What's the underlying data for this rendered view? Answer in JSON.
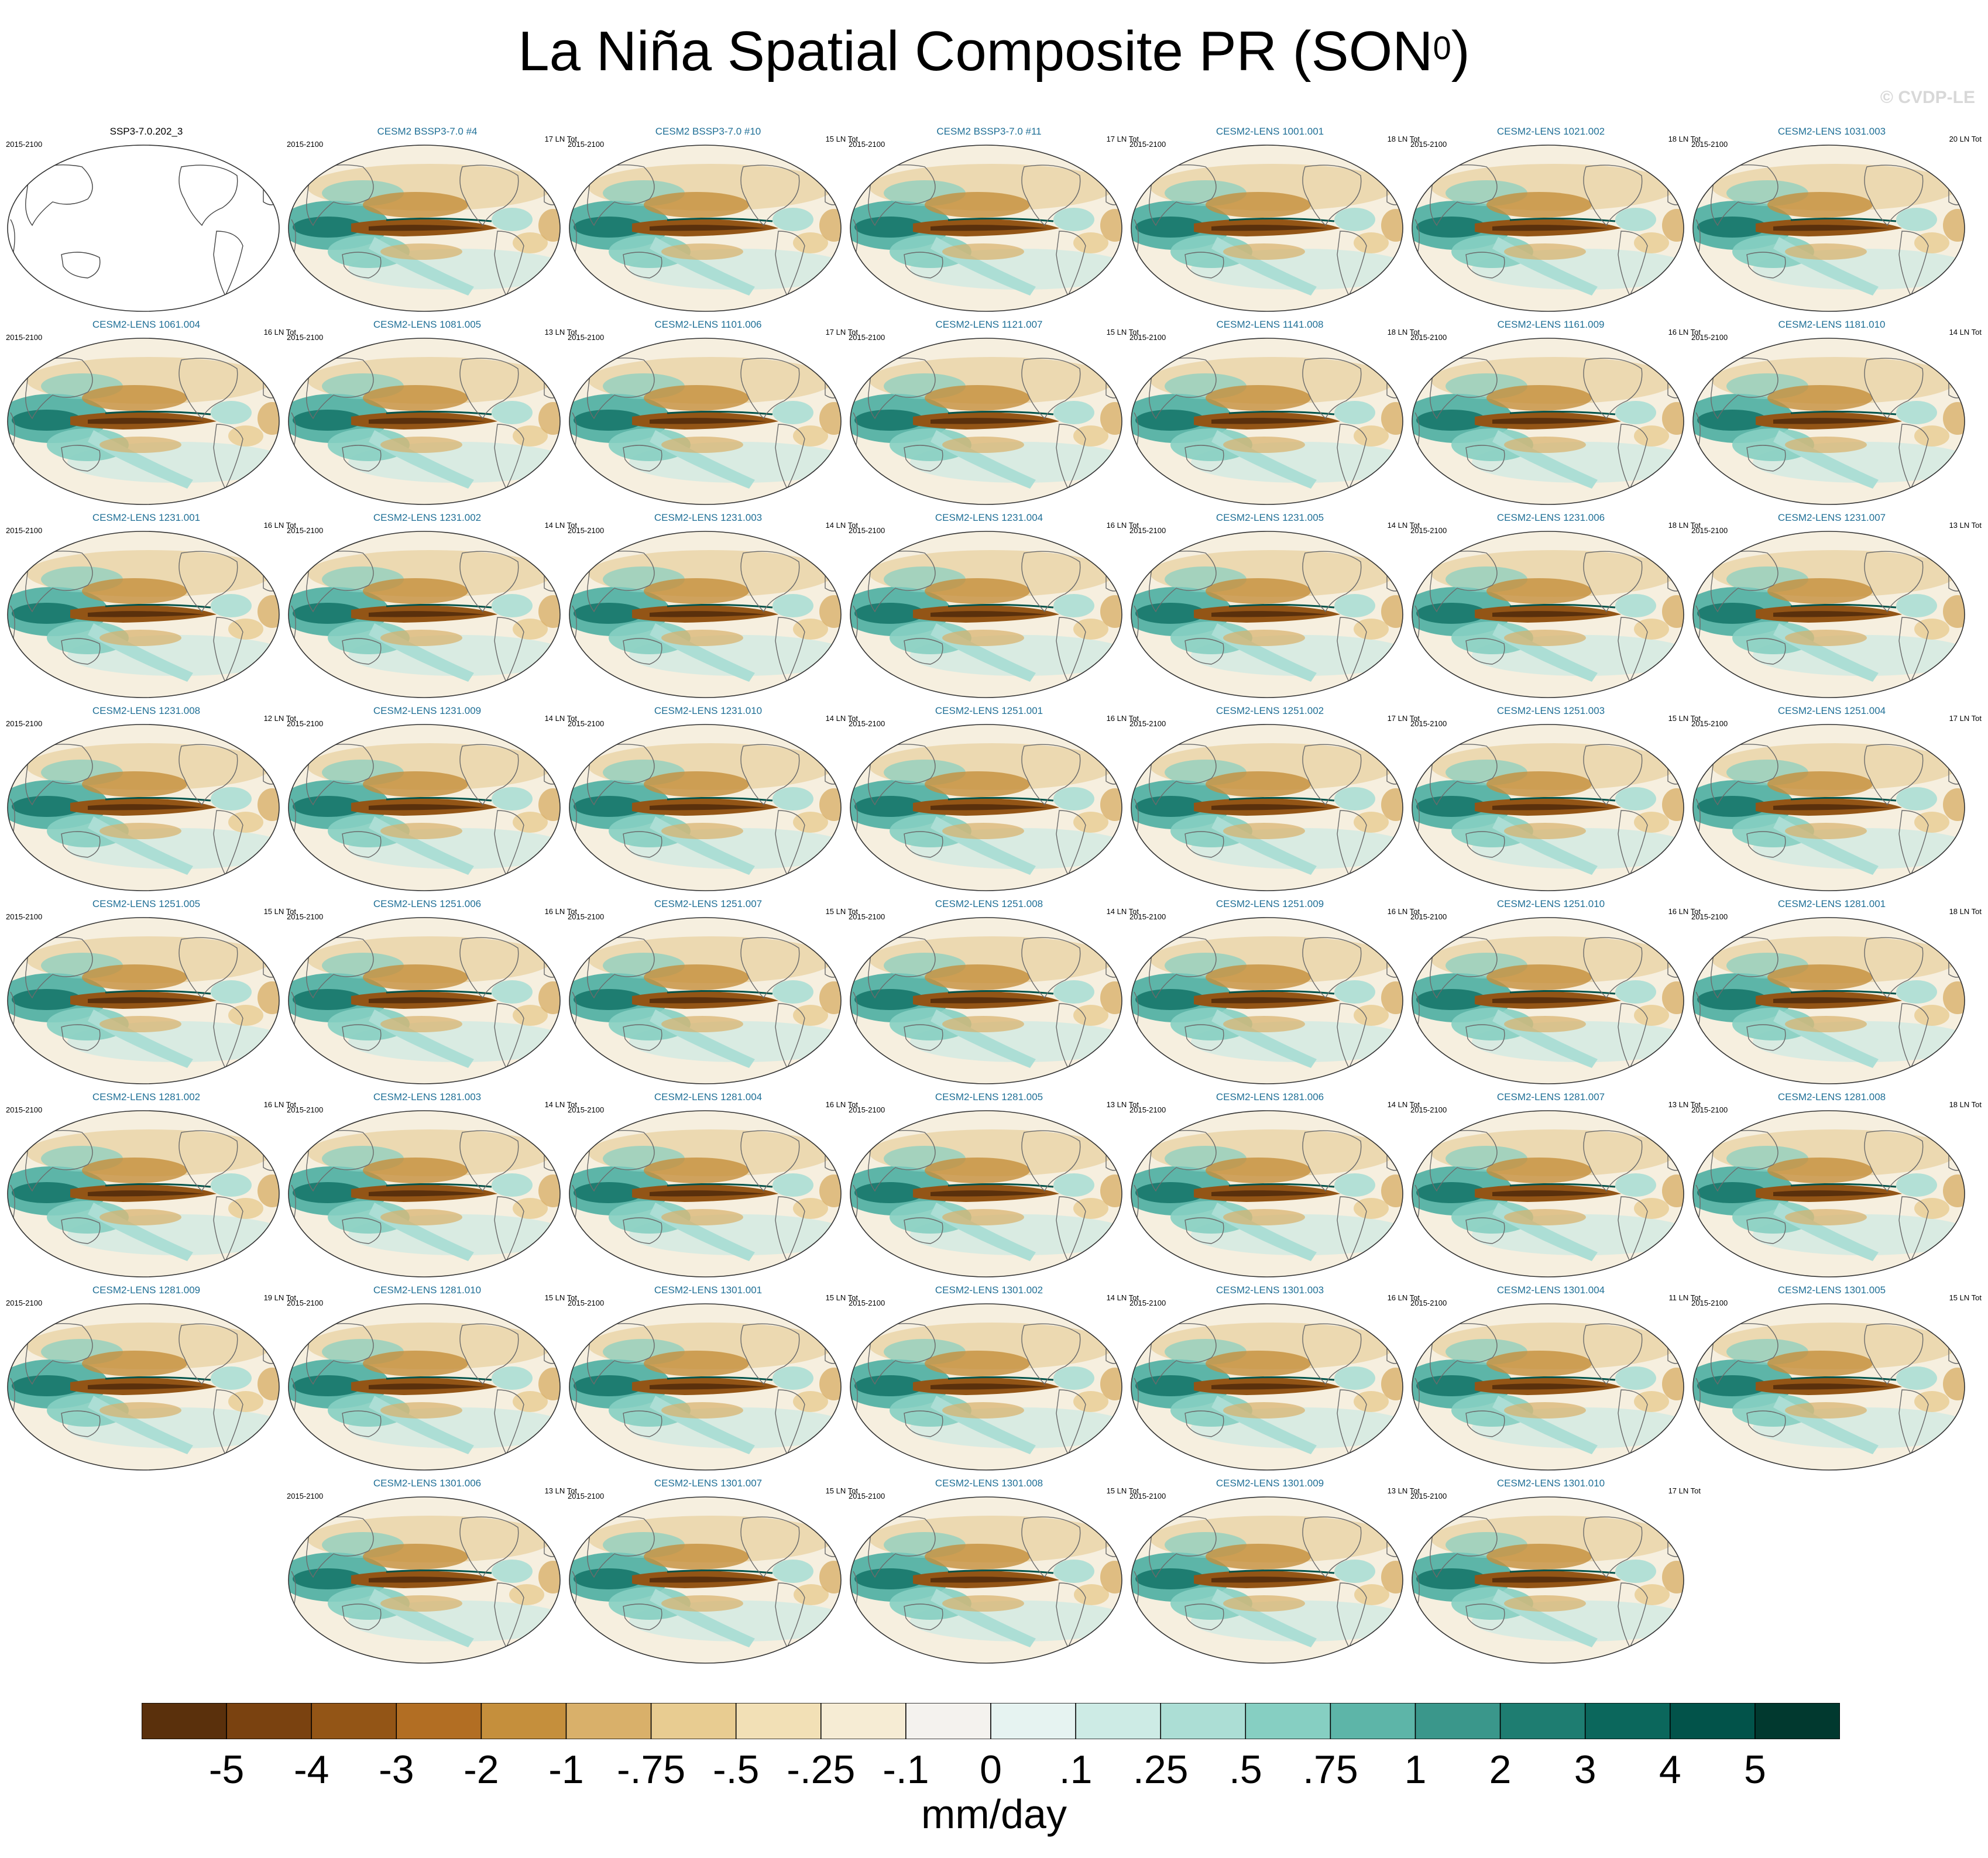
{
  "title": {
    "main": "La Niña Spatial Composite PR (SON",
    "superscript": "0",
    "close": ")"
  },
  "watermark": "© CVDP-LE",
  "period": "2015-2100",
  "panels": [
    {
      "name": "SSP3-7.0.202_3",
      "count": ""
    },
    {
      "name": "CESM2 BSSP3-7.0 #4",
      "count": "17 LN Tot"
    },
    {
      "name": "CESM2 BSSP3-7.0 #10",
      "count": "15 LN Tot"
    },
    {
      "name": "CESM2 BSSP3-7.0 #11",
      "count": "17 LN Tot"
    },
    {
      "name": "CESM2-LENS 1001.001",
      "count": "18 LN Tot"
    },
    {
      "name": "CESM2-LENS 1021.002",
      "count": "18 LN Tot"
    },
    {
      "name": "CESM2-LENS 1031.003",
      "count": "20 LN Tot"
    },
    {
      "name": "CESM2-LENS 1061.004",
      "count": "16 LN Tot"
    },
    {
      "name": "CESM2-LENS 1081.005",
      "count": "13 LN Tot"
    },
    {
      "name": "CESM2-LENS 1101.006",
      "count": "17 LN Tot"
    },
    {
      "name": "CESM2-LENS 1121.007",
      "count": "15 LN Tot"
    },
    {
      "name": "CESM2-LENS 1141.008",
      "count": "18 LN Tot"
    },
    {
      "name": "CESM2-LENS 1161.009",
      "count": "16 LN Tot"
    },
    {
      "name": "CESM2-LENS 1181.010",
      "count": "14 LN Tot"
    },
    {
      "name": "CESM2-LENS 1231.001",
      "count": "16 LN Tot"
    },
    {
      "name": "CESM2-LENS 1231.002",
      "count": "14 LN Tot"
    },
    {
      "name": "CESM2-LENS 1231.003",
      "count": "14 LN Tot"
    },
    {
      "name": "CESM2-LENS 1231.004",
      "count": "16 LN Tot"
    },
    {
      "name": "CESM2-LENS 1231.005",
      "count": "14 LN Tot"
    },
    {
      "name": "CESM2-LENS 1231.006",
      "count": "18 LN Tot"
    },
    {
      "name": "CESM2-LENS 1231.007",
      "count": "13 LN Tot"
    },
    {
      "name": "CESM2-LENS 1231.008",
      "count": "12 LN Tot"
    },
    {
      "name": "CESM2-LENS 1231.009",
      "count": "14 LN Tot"
    },
    {
      "name": "CESM2-LENS 1231.010",
      "count": "14 LN Tot"
    },
    {
      "name": "CESM2-LENS 1251.001",
      "count": "16 LN Tot"
    },
    {
      "name": "CESM2-LENS 1251.002",
      "count": "17 LN Tot"
    },
    {
      "name": "CESM2-LENS 1251.003",
      "count": "15 LN Tot"
    },
    {
      "name": "CESM2-LENS 1251.004",
      "count": "17 LN Tot"
    },
    {
      "name": "CESM2-LENS 1251.005",
      "count": "15 LN Tot"
    },
    {
      "name": "CESM2-LENS 1251.006",
      "count": "16 LN Tot"
    },
    {
      "name": "CESM2-LENS 1251.007",
      "count": "15 LN Tot"
    },
    {
      "name": "CESM2-LENS 1251.008",
      "count": "14 LN Tot"
    },
    {
      "name": "CESM2-LENS 1251.009",
      "count": "16 LN Tot"
    },
    {
      "name": "CESM2-LENS 1251.010",
      "count": "16 LN Tot"
    },
    {
      "name": "CESM2-LENS 1281.001",
      "count": "18 LN Tot"
    },
    {
      "name": "CESM2-LENS 1281.002",
      "count": "16 LN Tot"
    },
    {
      "name": "CESM2-LENS 1281.003",
      "count": "14 LN Tot"
    },
    {
      "name": "CESM2-LENS 1281.004",
      "count": "16 LN Tot"
    },
    {
      "name": "CESM2-LENS 1281.005",
      "count": "13 LN Tot"
    },
    {
      "name": "CESM2-LENS 1281.006",
      "count": "14 LN Tot"
    },
    {
      "name": "CESM2-LENS 1281.007",
      "count": "13 LN Tot"
    },
    {
      "name": "CESM2-LENS 1281.008",
      "count": "18 LN Tot"
    },
    {
      "name": "CESM2-LENS 1281.009",
      "count": "19 LN Tot"
    },
    {
      "name": "CESM2-LENS 1281.010",
      "count": "15 LN Tot"
    },
    {
      "name": "CESM2-LENS 1301.001",
      "count": "15 LN Tot"
    },
    {
      "name": "CESM2-LENS 1301.002",
      "count": "14 LN Tot"
    },
    {
      "name": "CESM2-LENS 1301.003",
      "count": "16 LN Tot"
    },
    {
      "name": "CESM2-LENS 1301.004",
      "count": "11 LN Tot"
    },
    {
      "name": "CESM2-LENS 1301.005",
      "count": "15 LN Tot"
    },
    {
      "name": "CESM2-LENS 1301.006",
      "count": "13 LN Tot"
    },
    {
      "name": "CESM2-LENS 1301.007",
      "count": "15 LN Tot"
    },
    {
      "name": "CESM2-LENS 1301.008",
      "count": "15 LN Tot"
    },
    {
      "name": "CESM2-LENS 1301.009",
      "count": "13 LN Tot"
    },
    {
      "name": "CESM2-LENS 1301.010",
      "count": "17 LN Tot"
    }
  ],
  "colorbar": {
    "colors": [
      "#5a300c",
      "#7a4210",
      "#935516",
      "#b26e23",
      "#c58f3c",
      "#d9b06a",
      "#e8cc91",
      "#f2e0b6",
      "#f6ecd4",
      "#f4f2ee",
      "#e6f3f1",
      "#cdebe5",
      "#acded5",
      "#86cfc2",
      "#5db5a8",
      "#3a978b",
      "#1e7d71",
      "#0b675c",
      "#02534a",
      "#01392f"
    ],
    "labels": [
      "-5",
      "-4",
      "-3",
      "-2",
      "-1",
      "-.75",
      "-.5",
      "-.25",
      "-.1",
      "0",
      ".1",
      ".25",
      ".5",
      ".75",
      "1",
      "2",
      "3",
      "4",
      "5"
    ],
    "units": "mm/day"
  }
}
